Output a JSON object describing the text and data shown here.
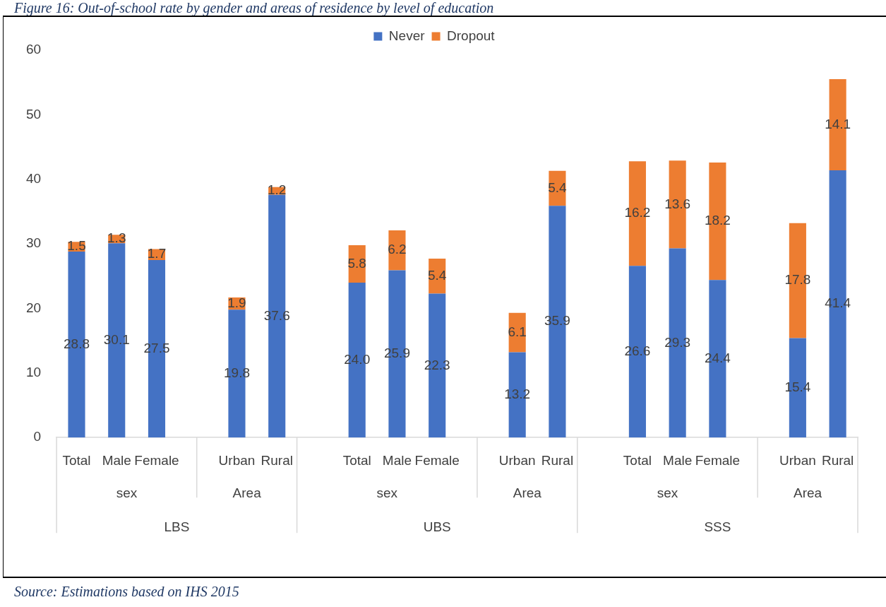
{
  "chart_data": {
    "type": "bar",
    "stacked": true,
    "title": "Figure 16: Out-of-school rate by gender and areas of residence by level of education",
    "categories": [
      "Total",
      "Male",
      "Female",
      null,
      "Urban",
      "Rural",
      null,
      "Total",
      "Male",
      "Female",
      null,
      "Urban",
      "Rural",
      null,
      "Total",
      "Male",
      "Female",
      null,
      "Urban",
      "Rural"
    ],
    "series": [
      {
        "name": "Never",
        "color": "#4472c4",
        "values": [
          28.8,
          30.1,
          27.5,
          null,
          19.8,
          37.6,
          null,
          24.0,
          25.9,
          22.3,
          null,
          13.2,
          35.9,
          null,
          26.6,
          29.3,
          24.4,
          null,
          15.4,
          41.4
        ],
        "value_labels": [
          "28.8",
          "30.1",
          "27.5",
          null,
          "19.8",
          "37.6",
          null,
          "24.0",
          "25.9",
          "22.3",
          null,
          "13.2",
          "35.9",
          null,
          "26.6",
          "29.3",
          "24.4",
          null,
          "15.4",
          "41.4"
        ]
      },
      {
        "name": "Dropout",
        "color": "#ed7d31",
        "values": [
          1.5,
          1.3,
          1.7,
          null,
          1.9,
          1.2,
          null,
          5.8,
          6.2,
          5.4,
          null,
          6.1,
          5.4,
          null,
          16.2,
          13.6,
          18.2,
          null,
          17.8,
          14.1
        ],
        "value_labels": [
          "1.5",
          "1.3",
          "1.7",
          null,
          "1.9",
          "1.2",
          null,
          "5.8",
          "6.2",
          "5.4",
          null,
          "6.1",
          "5.4",
          null,
          "16.2",
          "13.6",
          "18.2",
          null,
          "17.8",
          "14.1"
        ]
      }
    ],
    "ylim": [
      0,
      60
    ],
    "yticks": [
      0,
      10,
      20,
      30,
      40,
      50,
      60
    ],
    "grid": false,
    "legend": "top",
    "annotations": [
      "sex",
      "Area",
      "sex",
      "Area",
      "sex",
      "Area",
      "LBS",
      "UBS",
      "SSS",
      "Source: Estimations based on IHS 2015"
    ]
  }
}
